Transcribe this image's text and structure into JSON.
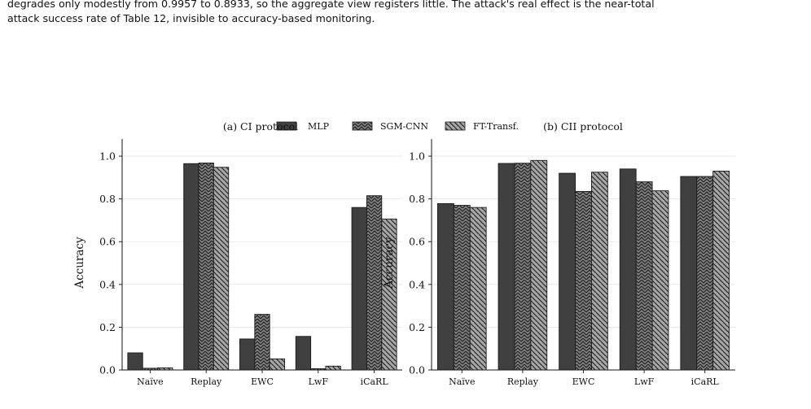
{
  "caption": {
    "line1": "degrades only modestly from 0.9957 to 0.8933, so the aggregate view registers little. The attack's real effect is the near-total",
    "line2": "attack success rate of Table 12, invisible to accuracy-based monitoring."
  },
  "legend": [
    "MLP",
    "SGM-CNN",
    "FT-Transf."
  ],
  "colors": {
    "MLP": "#404040",
    "SGM-CNN": "#7f7f7f",
    "FT-Transf.": "#a6a6a6"
  },
  "patterns": {
    "MLP": "none",
    "SGM-CNN": "chevron-hatch",
    "FT-Transf.": "backslash-hatch"
  },
  "chart_data": [
    {
      "type": "bar",
      "title": "(a) CI protocol",
      "ylabel": "Accuracy",
      "xlabel": "",
      "ylim": [
        0,
        1.08
      ],
      "yticks": [
        "0.0",
        "0.2",
        "0.4",
        "0.6",
        "0.8",
        "1.0"
      ],
      "categories": [
        "Naïve",
        "Replay",
        "EWC",
        "LwF",
        "iCaRL"
      ],
      "grid": "horizontal",
      "series": [
        {
          "name": "MLP",
          "values": [
            0.08,
            0.965,
            0.145,
            0.157,
            0.76
          ]
        },
        {
          "name": "SGM-CNN",
          "values": [
            0.008,
            0.968,
            0.26,
            0.006,
            0.815
          ]
        },
        {
          "name": "FT-Transf.",
          "values": [
            0.01,
            0.948,
            0.052,
            0.018,
            0.706
          ]
        }
      ]
    },
    {
      "type": "bar",
      "title": "(b) CII protocol",
      "ylabel": "Accuracy",
      "xlabel": "",
      "ylim": [
        0,
        1.08
      ],
      "yticks": [
        "0.0",
        "0.2",
        "0.4",
        "0.6",
        "0.8",
        "1.0"
      ],
      "categories": [
        "Naïve",
        "Replay",
        "EWC",
        "LwF",
        "iCaRL"
      ],
      "grid": "horizontal",
      "series": [
        {
          "name": "MLP",
          "values": [
            0.778,
            0.966,
            0.92,
            0.94,
            0.905
          ]
        },
        {
          "name": "SGM-CNN",
          "values": [
            0.77,
            0.967,
            0.835,
            0.88,
            0.905
          ]
        },
        {
          "name": "FT-Transf.",
          "values": [
            0.76,
            0.98,
            0.925,
            0.838,
            0.93
          ]
        }
      ]
    }
  ]
}
